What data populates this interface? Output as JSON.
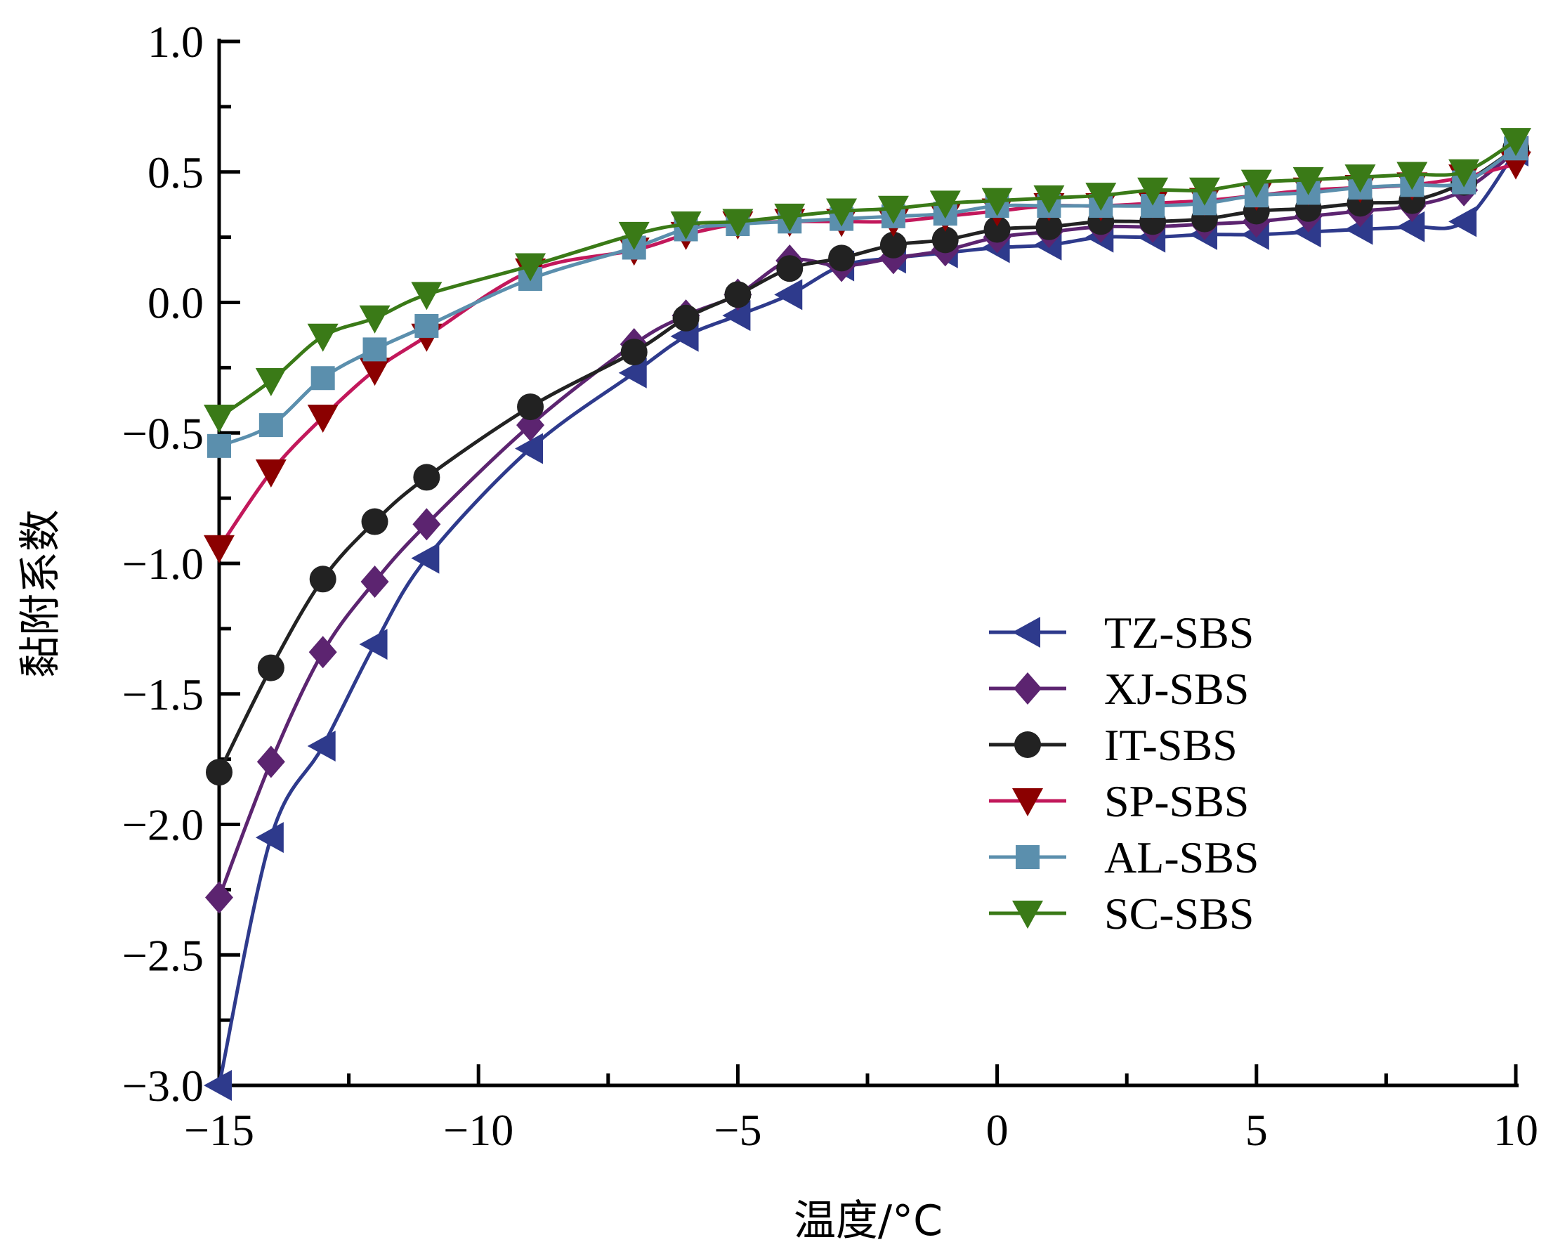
{
  "chart_data": {
    "type": "line",
    "title": "",
    "xlabel": "温度/°C",
    "ylabel": "黏附系数",
    "xlim": [
      -15,
      10
    ],
    "ylim": [
      -3.0,
      1.0
    ],
    "x_ticks": [
      -15,
      -10,
      -5,
      0,
      5,
      10
    ],
    "x_tick_labels": [
      "−15",
      "−10",
      "−5",
      "0",
      "5",
      "10"
    ],
    "y_ticks": [
      -3.0,
      -2.5,
      -2.0,
      -1.5,
      -1.0,
      -0.5,
      0.0,
      0.5,
      1.0
    ],
    "y_tick_labels": [
      "−3.0",
      "−2.5",
      "−2.0",
      "−1.5",
      "−1.0",
      "−0.5",
      "0.0",
      "0.5",
      "1.0"
    ],
    "grid": false,
    "legend_position": "center-right",
    "x": [
      -15,
      -14,
      -13,
      -12,
      -11,
      -9,
      -7,
      -6,
      -5,
      -4,
      -3,
      -2,
      -1,
      0,
      1,
      2,
      3,
      4,
      5,
      6,
      7,
      8,
      9,
      10
    ],
    "series": [
      {
        "name": "TZ-SBS",
        "color": "#2e3a8c",
        "marker": "triangle-left",
        "values": [
          -3.0,
          -2.05,
          -1.7,
          -1.31,
          -0.98,
          -0.56,
          -0.27,
          -0.13,
          -0.05,
          0.03,
          0.14,
          0.17,
          0.19,
          0.21,
          0.22,
          0.25,
          0.25,
          0.26,
          0.26,
          0.27,
          0.28,
          0.29,
          0.31,
          0.58
        ]
      },
      {
        "name": "XJ-SBS",
        "color": "#5c2470",
        "marker": "diamond",
        "values": [
          -2.28,
          -1.76,
          -1.34,
          -1.07,
          -0.85,
          -0.47,
          -0.16,
          -0.05,
          0.03,
          0.16,
          0.14,
          0.17,
          0.2,
          0.25,
          0.27,
          0.29,
          0.29,
          0.3,
          0.31,
          0.33,
          0.35,
          0.37,
          0.43,
          0.58
        ]
      },
      {
        "name": "IT-SBS",
        "color": "#222222",
        "marker": "circle",
        "values": [
          -1.8,
          -1.4,
          -1.06,
          -0.84,
          -0.67,
          -0.4,
          -0.19,
          -0.06,
          0.03,
          0.13,
          0.17,
          0.22,
          0.24,
          0.28,
          0.29,
          0.31,
          0.31,
          0.32,
          0.35,
          0.36,
          0.38,
          0.39,
          0.46,
          0.59
        ]
      },
      {
        "name": "SP-SBS",
        "color": "#8b0000",
        "line_color": "#c2185b",
        "marker": "triangle-down",
        "values": [
          -0.94,
          -0.65,
          -0.44,
          -0.26,
          -0.13,
          0.12,
          0.2,
          0.26,
          0.3,
          0.31,
          0.31,
          0.31,
          0.33,
          0.35,
          0.37,
          0.37,
          0.38,
          0.39,
          0.41,
          0.43,
          0.44,
          0.45,
          0.48,
          0.53
        ]
      },
      {
        "name": "AL-SBS",
        "color": "#5b8fad",
        "marker": "square",
        "values": [
          -0.55,
          -0.47,
          -0.29,
          -0.18,
          -0.09,
          0.09,
          0.21,
          0.28,
          0.3,
          0.31,
          0.32,
          0.33,
          0.34,
          0.37,
          0.37,
          0.37,
          0.37,
          0.38,
          0.41,
          0.42,
          0.44,
          0.45,
          0.46,
          0.59
        ]
      },
      {
        "name": "SC-SBS",
        "color": "#3a7a17",
        "marker": "triangle-down",
        "values": [
          -0.44,
          -0.3,
          -0.13,
          -0.06,
          0.03,
          0.14,
          0.26,
          0.3,
          0.31,
          0.33,
          0.35,
          0.36,
          0.38,
          0.39,
          0.4,
          0.41,
          0.43,
          0.43,
          0.46,
          0.47,
          0.48,
          0.49,
          0.5,
          0.62
        ]
      }
    ]
  }
}
